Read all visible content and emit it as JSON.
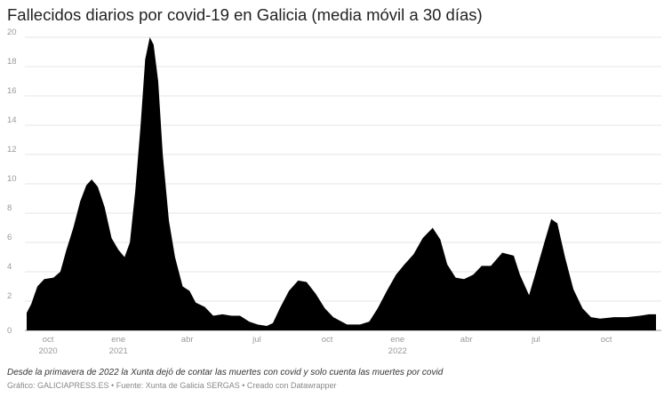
{
  "chart_data": {
    "type": "area",
    "title": "Fallecidos diarios por covid-19 en Galicia (media móvil a 30 días)",
    "xlabel": "",
    "ylabel": "",
    "ylim": [
      0,
      20
    ],
    "yticks": [
      0,
      2,
      4,
      6,
      8,
      10,
      12,
      14,
      16,
      18,
      20
    ],
    "grid": true,
    "fill_color": "#000000",
    "xticks": [
      {
        "date": "2020-10-01",
        "label": "oct",
        "year": "2020"
      },
      {
        "date": "2021-01-01",
        "label": "ene",
        "year": "2021"
      },
      {
        "date": "2021-04-01",
        "label": "abr",
        "year": ""
      },
      {
        "date": "2021-07-01",
        "label": "jul",
        "year": ""
      },
      {
        "date": "2021-10-01",
        "label": "oct",
        "year": ""
      },
      {
        "date": "2022-01-01",
        "label": "ene",
        "year": "2022"
      },
      {
        "date": "2022-04-01",
        "label": "abr",
        "year": ""
      },
      {
        "date": "2022-07-01",
        "label": "jul",
        "year": ""
      },
      {
        "date": "2022-10-01",
        "label": "oct",
        "year": ""
      }
    ],
    "points": [
      [
        "2020-09-03",
        1.2
      ],
      [
        "2020-09-09",
        1.8
      ],
      [
        "2020-09-17",
        3.0
      ],
      [
        "2020-09-26",
        3.5
      ],
      [
        "2020-10-08",
        3.6
      ],
      [
        "2020-10-17",
        4.0
      ],
      [
        "2020-10-25",
        5.5
      ],
      [
        "2020-11-03",
        7.0
      ],
      [
        "2020-11-12",
        8.8
      ],
      [
        "2020-11-20",
        9.9
      ],
      [
        "2020-11-27",
        10.3
      ],
      [
        "2020-12-05",
        9.8
      ],
      [
        "2020-12-14",
        8.4
      ],
      [
        "2020-12-23",
        6.3
      ],
      [
        "2021-01-01",
        5.5
      ],
      [
        "2021-01-09",
        5.0
      ],
      [
        "2021-01-16",
        6.0
      ],
      [
        "2021-01-23",
        9.5
      ],
      [
        "2021-01-30",
        14.0
      ],
      [
        "2021-02-05",
        18.5
      ],
      [
        "2021-02-11",
        20.0
      ],
      [
        "2021-02-16",
        19.5
      ],
      [
        "2021-02-22",
        17.0
      ],
      [
        "2021-02-28",
        12.0
      ],
      [
        "2021-03-08",
        7.5
      ],
      [
        "2021-03-16",
        5.0
      ],
      [
        "2021-03-26",
        3.0
      ],
      [
        "2021-04-04",
        2.7
      ],
      [
        "2021-04-12",
        1.9
      ],
      [
        "2021-04-24",
        1.6
      ],
      [
        "2021-05-05",
        1.0
      ],
      [
        "2021-05-17",
        1.1
      ],
      [
        "2021-05-29",
        1.0
      ],
      [
        "2021-06-09",
        1.0
      ],
      [
        "2021-06-21",
        0.6
      ],
      [
        "2021-07-02",
        0.4
      ],
      [
        "2021-07-14",
        0.3
      ],
      [
        "2021-07-22",
        0.5
      ],
      [
        "2021-07-31",
        1.5
      ],
      [
        "2021-08-12",
        2.7
      ],
      [
        "2021-08-24",
        3.4
      ],
      [
        "2021-09-04",
        3.3
      ],
      [
        "2021-09-16",
        2.5
      ],
      [
        "2021-09-28",
        1.5
      ],
      [
        "2021-10-09",
        0.9
      ],
      [
        "2021-10-27",
        0.4
      ],
      [
        "2021-11-13",
        0.4
      ],
      [
        "2021-11-25",
        0.6
      ],
      [
        "2021-12-06",
        1.5
      ],
      [
        "2021-12-18",
        2.7
      ],
      [
        "2021-12-30",
        3.8
      ],
      [
        "2022-01-10",
        4.5
      ],
      [
        "2022-01-22",
        5.2
      ],
      [
        "2022-02-03",
        6.3
      ],
      [
        "2022-02-16",
        7.0
      ],
      [
        "2022-02-26",
        6.2
      ],
      [
        "2022-03-07",
        4.5
      ],
      [
        "2022-03-18",
        3.6
      ],
      [
        "2022-03-29",
        3.5
      ],
      [
        "2022-04-10",
        3.8
      ],
      [
        "2022-04-21",
        4.4
      ],
      [
        "2022-05-03",
        4.4
      ],
      [
        "2022-05-18",
        5.3
      ],
      [
        "2022-06-02",
        5.1
      ],
      [
        "2022-06-10",
        3.8
      ],
      [
        "2022-06-22",
        2.4
      ],
      [
        "2022-07-01",
        4.0
      ],
      [
        "2022-07-12",
        6.0
      ],
      [
        "2022-07-21",
        7.6
      ],
      [
        "2022-07-29",
        7.3
      ],
      [
        "2022-08-08",
        5.0
      ],
      [
        "2022-08-19",
        2.8
      ],
      [
        "2022-08-31",
        1.5
      ],
      [
        "2022-09-11",
        0.9
      ],
      [
        "2022-09-23",
        0.8
      ],
      [
        "2022-10-11",
        0.9
      ],
      [
        "2022-10-28",
        0.9
      ],
      [
        "2022-11-14",
        1.0
      ],
      [
        "2022-11-26",
        1.1
      ],
      [
        "2022-12-05",
        1.1
      ]
    ]
  },
  "notes": "Desde la primavera de 2022 la Xunta dejó de contar las muertes con covid y solo cuenta las muertes por covid",
  "credit": "Gráfico: GALICIAPRESS.ES • Fuente: Xunta de Galicia SERGAS • Creado con Datawrapper"
}
